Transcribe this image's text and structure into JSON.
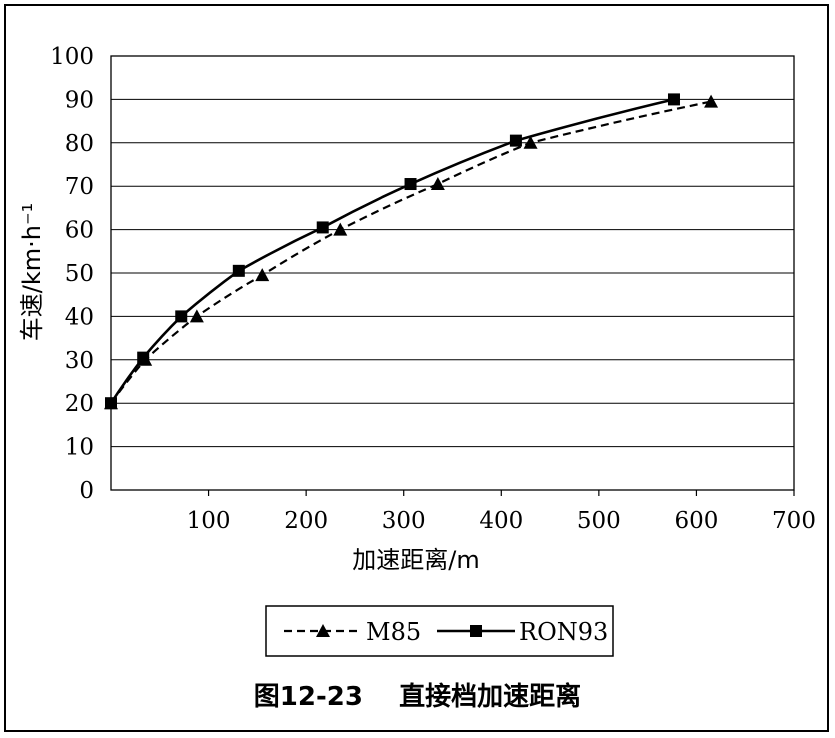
{
  "chart_data": {
    "type": "line",
    "xlabel": "加速距离/m",
    "ylabel": "车速/km·h⁻¹",
    "xlim": [
      0,
      700
    ],
    "ylim": [
      0,
      100
    ],
    "x_ticks": [
      "100",
      "200",
      "300",
      "400",
      "500",
      "600",
      "700"
    ],
    "y_ticks": [
      "0",
      "10",
      "20",
      "30",
      "40",
      "50",
      "60",
      "70",
      "80",
      "90",
      "100"
    ],
    "grid": "horizontal",
    "legend_position": "bottom",
    "series": [
      {
        "name": "M85",
        "line_style": "dashed",
        "marker": "triangle",
        "points": [
          [
            0,
            20
          ],
          [
            35,
            30
          ],
          [
            88,
            40
          ],
          [
            155,
            49.5
          ],
          [
            235,
            60
          ],
          [
            335,
            70.5
          ],
          [
            430,
            80
          ],
          [
            615,
            89.5
          ]
        ]
      },
      {
        "name": "RON93",
        "line_style": "solid",
        "marker": "square",
        "points": [
          [
            0,
            20
          ],
          [
            33,
            30.5
          ],
          [
            72,
            40
          ],
          [
            131,
            50.5
          ],
          [
            217,
            60.5
          ],
          [
            307,
            70.5
          ],
          [
            415,
            80.5
          ],
          [
            577,
            90
          ]
        ]
      }
    ]
  },
  "caption": {
    "number": "图12-23",
    "title": "直接档加速距离"
  }
}
